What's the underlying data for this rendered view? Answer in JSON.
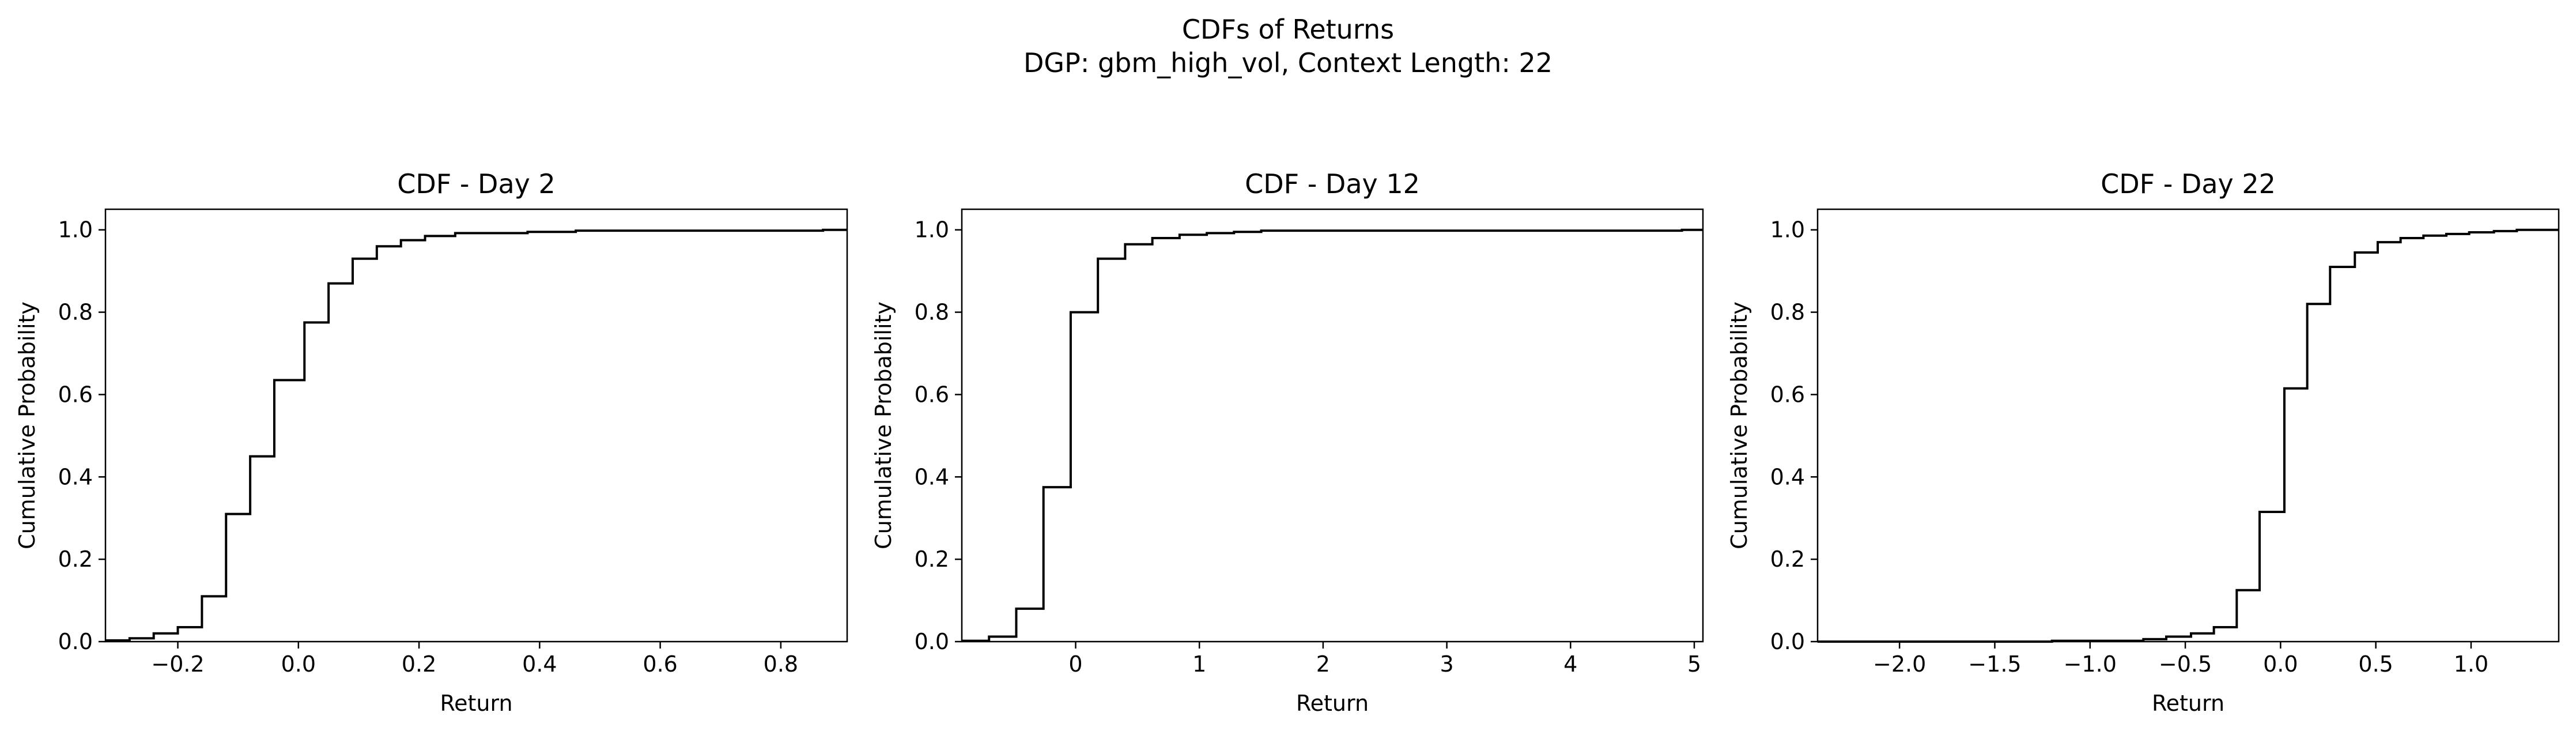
{
  "figure": {
    "title": "CDFs of Returns",
    "subtitle": "DGP: gbm_high_vol, Context Length: 22"
  },
  "chart_data": [
    {
      "type": "line",
      "step": true,
      "title": "CDF - Day 2",
      "xlabel": "Return",
      "ylabel": "Cumulative Probability",
      "xlim": [
        -0.32,
        0.91
      ],
      "ylim": [
        0,
        1.05
      ],
      "xticks": [
        -0.2,
        0.0,
        0.2,
        0.4,
        0.6,
        0.8
      ],
      "xtick_labels": [
        "−0.2",
        "0.0",
        "0.2",
        "0.4",
        "0.6",
        "0.8"
      ],
      "yticks": [
        0.0,
        0.2,
        0.4,
        0.6,
        0.8,
        1.0
      ],
      "ytick_labels": [
        "0.0",
        "0.2",
        "0.4",
        "0.6",
        "0.8",
        "1.0"
      ],
      "color": "#000000",
      "x": [
        -0.32,
        -0.28,
        -0.24,
        -0.2,
        -0.16,
        -0.12,
        -0.08,
        -0.04,
        0.01,
        0.05,
        0.09,
        0.13,
        0.17,
        0.21,
        0.26,
        0.38,
        0.46,
        0.87,
        0.91
      ],
      "y": [
        0.003,
        0.008,
        0.02,
        0.035,
        0.11,
        0.31,
        0.45,
        0.635,
        0.775,
        0.87,
        0.93,
        0.96,
        0.975,
        0.985,
        0.992,
        0.995,
        0.998,
        1.0,
        1.0
      ]
    },
    {
      "type": "line",
      "step": true,
      "title": "CDF - Day 12",
      "xlabel": "Return",
      "ylabel": "Cumulative Probability",
      "xlim": [
        -0.92,
        5.07
      ],
      "ylim": [
        0,
        1.05
      ],
      "xticks": [
        0,
        1,
        2,
        3,
        4,
        5
      ],
      "xtick_labels": [
        "0",
        "1",
        "2",
        "3",
        "4",
        "5"
      ],
      "yticks": [
        0.0,
        0.2,
        0.4,
        0.6,
        0.8,
        1.0
      ],
      "ytick_labels": [
        "0.0",
        "0.2",
        "0.4",
        "0.6",
        "0.8",
        "1.0"
      ],
      "color": "#000000",
      "x": [
        -0.92,
        -0.7,
        -0.48,
        -0.26,
        -0.04,
        0.18,
        0.4,
        0.62,
        0.84,
        1.06,
        1.28,
        1.5,
        4.9,
        5.07
      ],
      "y": [
        0.002,
        0.012,
        0.08,
        0.375,
        0.8,
        0.93,
        0.965,
        0.98,
        0.988,
        0.992,
        0.995,
        0.998,
        1.0,
        1.0
      ]
    },
    {
      "type": "line",
      "step": true,
      "title": "CDF - Day 22",
      "xlabel": "Return",
      "ylabel": "Cumulative Probability",
      "xlim": [
        -2.43,
        1.46
      ],
      "ylim": [
        0,
        1.05
      ],
      "xticks": [
        -2.0,
        -1.5,
        -1.0,
        -0.5,
        0.0,
        0.5,
        1.0
      ],
      "xtick_labels": [
        "−2.0",
        "−1.5",
        "−1.0",
        "−0.5",
        "0.0",
        "0.5",
        "1.0"
      ],
      "yticks": [
        0.0,
        0.2,
        0.4,
        0.6,
        0.8,
        1.0
      ],
      "ytick_labels": [
        "0.0",
        "0.2",
        "0.4",
        "0.6",
        "0.8",
        "1.0"
      ],
      "color": "#000000",
      "x": [
        -2.43,
        -1.2,
        -0.72,
        -0.6,
        -0.47,
        -0.35,
        -0.23,
        -0.11,
        0.02,
        0.14,
        0.26,
        0.39,
        0.51,
        0.63,
        0.75,
        0.87,
        0.99,
        1.12,
        1.24,
        1.46
      ],
      "y": [
        0.0,
        0.002,
        0.006,
        0.012,
        0.02,
        0.035,
        0.125,
        0.315,
        0.615,
        0.82,
        0.91,
        0.945,
        0.97,
        0.98,
        0.986,
        0.99,
        0.994,
        0.997,
        1.0,
        1.0
      ]
    }
  ]
}
